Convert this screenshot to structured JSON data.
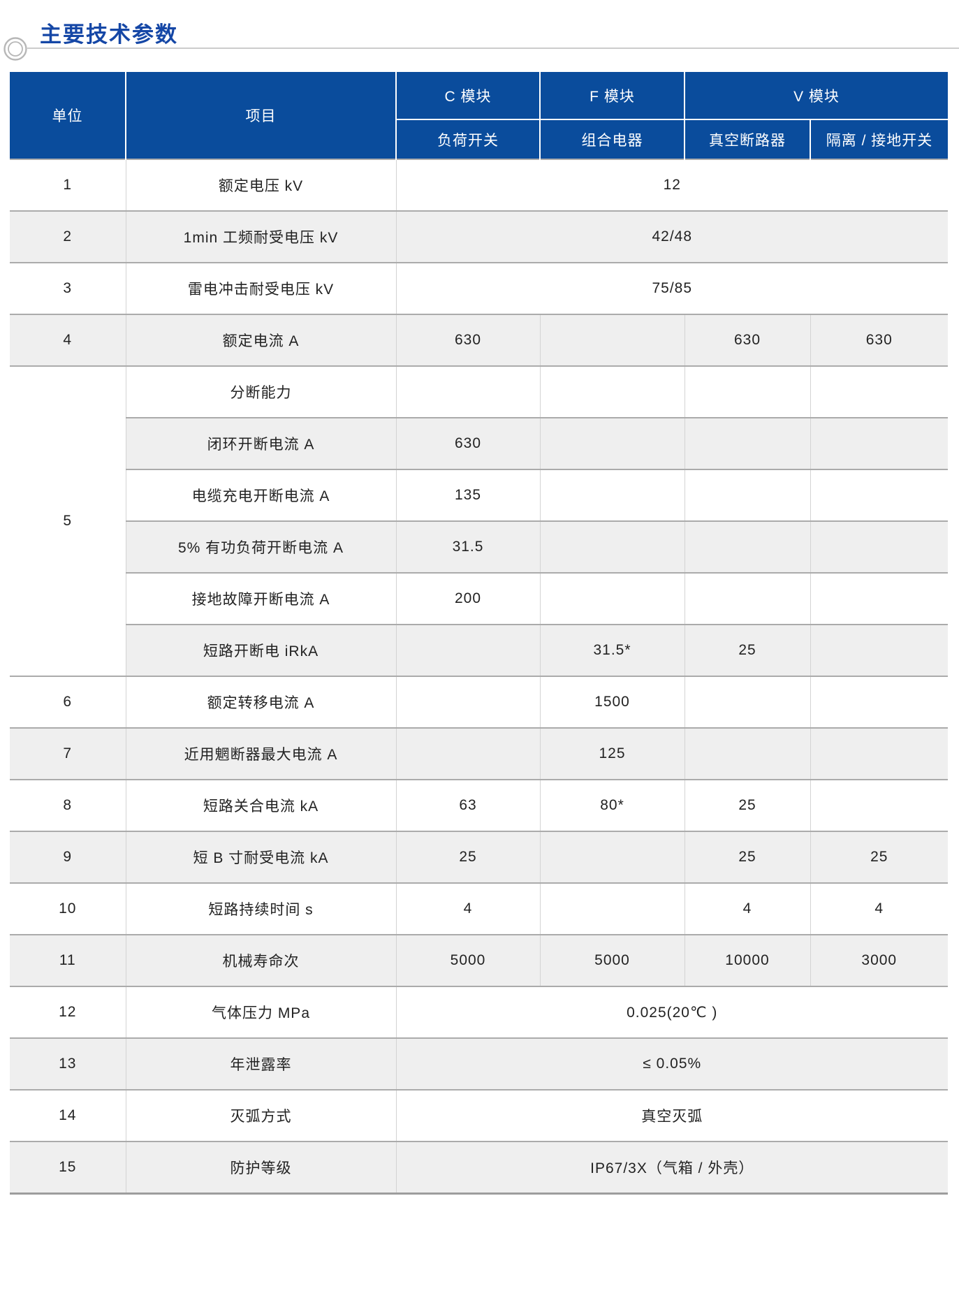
{
  "section": {
    "title": "主要技术参数"
  },
  "icons": {
    "section_marker": "double-ring-icon"
  },
  "colors": {
    "header_blue": "#0a4c9c",
    "title_blue": "#1547a6",
    "zebra_gray": "#efefef",
    "border_dark": "#ababab",
    "border_light": "#d3d3d3"
  },
  "table": {
    "unit_header": "单位",
    "item_header": "项目",
    "module_groups": [
      {
        "label": "C 模块",
        "columns": [
          "负荷开关"
        ]
      },
      {
        "label": "F 模块",
        "columns": [
          "组合电器"
        ]
      },
      {
        "label": "V 模块",
        "columns": [
          "真空断路器",
          "隔离 / 接地开关"
        ]
      }
    ],
    "rows": [
      {
        "no": "1",
        "item": "额定电压 kV",
        "span": "12"
      },
      {
        "no": "2",
        "item": "1min 工频耐受电压 kV",
        "span": "42/48"
      },
      {
        "no": "3",
        "item": "雷电冲击耐受电压 kV",
        "span": "75/85"
      },
      {
        "no": "4",
        "item": "额定电流 A",
        "values": [
          "630",
          "",
          "630",
          "630"
        ]
      },
      {
        "no": "5",
        "subrows": [
          {
            "item": "分断能力",
            "values": [
              "",
              "",
              "",
              ""
            ]
          },
          {
            "item": "闭环开断电流 A",
            "values": [
              "630",
              "",
              "",
              ""
            ]
          },
          {
            "item": "电缆充电开断电流 A",
            "values": [
              "135",
              "",
              "",
              ""
            ]
          },
          {
            "item": "5% 有功负荷开断电流 A",
            "values": [
              "31.5",
              "",
              "",
              ""
            ]
          },
          {
            "item": "接地故障开断电流 A",
            "values": [
              "200",
              "",
              "",
              ""
            ]
          },
          {
            "item": "短路开断电 iRkA",
            "values": [
              "",
              "31.5*",
              "25",
              ""
            ]
          }
        ]
      },
      {
        "no": "6",
        "item": "额定转移电流 A",
        "values": [
          "",
          "1500",
          "",
          ""
        ]
      },
      {
        "no": "7",
        "item": "近用魍断器最大电流 A",
        "values": [
          "",
          "125",
          "",
          ""
        ]
      },
      {
        "no": "8",
        "item": "短路关合电流 kA",
        "values": [
          "63",
          "80*",
          "25",
          ""
        ]
      },
      {
        "no": "9",
        "item": "短 B 寸耐受电流 kA",
        "values": [
          "25",
          "",
          "25",
          "25"
        ]
      },
      {
        "no": "10",
        "item": "短路持续时间 s",
        "values": [
          "4",
          "",
          "4",
          "4"
        ]
      },
      {
        "no": "11",
        "item": "机械寿命次",
        "values": [
          "5000",
          "5000",
          "10000",
          "3000"
        ]
      },
      {
        "no": "12",
        "item": "气体压力 MPa",
        "span": "0.025(20℃ )"
      },
      {
        "no": "13",
        "item": "年泄露率",
        "span": "≤ 0.05%"
      },
      {
        "no": "14",
        "item": "灭弧方式",
        "span": "真空灭弧"
      },
      {
        "no": "15",
        "item": "防护等级",
        "span": "IP67/3X（气箱 / 外壳）"
      }
    ]
  }
}
